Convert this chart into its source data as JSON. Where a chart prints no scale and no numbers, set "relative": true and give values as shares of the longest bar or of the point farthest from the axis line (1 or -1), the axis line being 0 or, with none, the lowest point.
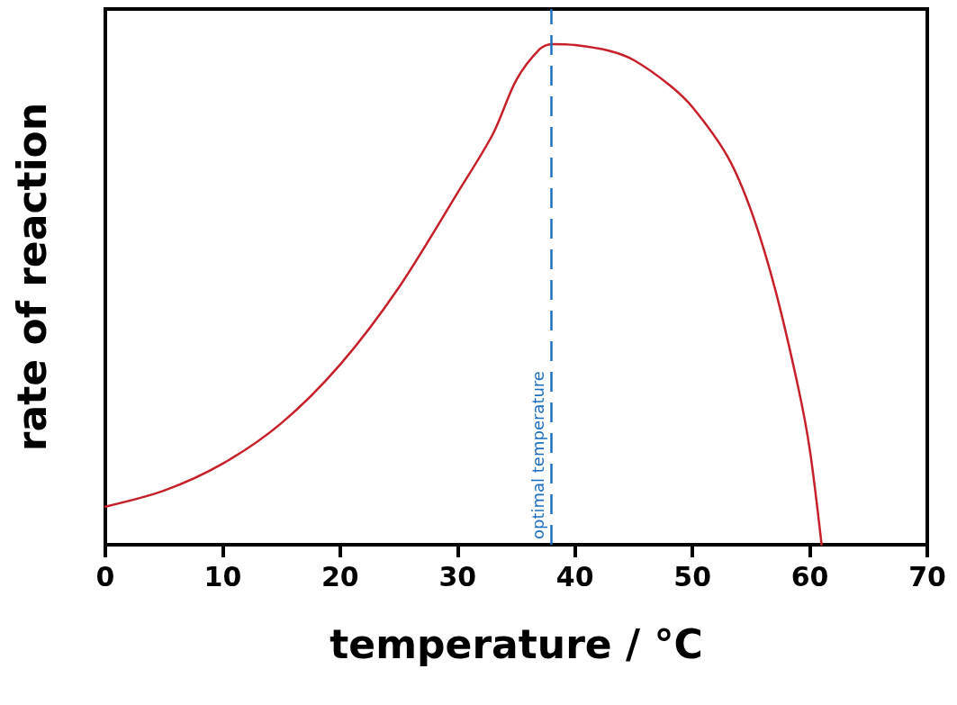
{
  "chart_data": {
    "type": "line",
    "xlabel": "temperature / °C",
    "ylabel": "rate of reaction",
    "x": [
      0,
      5,
      10,
      15,
      20,
      25,
      30,
      33,
      35,
      37,
      38,
      40,
      43,
      45,
      48,
      50,
      53,
      55,
      57,
      59,
      60,
      61
    ],
    "series": [
      {
        "color": "#c8202a",
        "values": [
          0.076,
          0.108,
          0.162,
          0.243,
          0.36,
          0.514,
          0.703,
          0.82,
          0.928,
          0.99,
          1,
          0.998,
          0.986,
          0.968,
          0.919,
          0.874,
          0.775,
          0.667,
          0.514,
          0.315,
          0.189,
          0
        ]
      }
    ],
    "relative": true,
    "xlim": [
      0,
      70
    ],
    "xticks": [
      0,
      10,
      20,
      30,
      40,
      50,
      60,
      70
    ],
    "ref_lines": [
      {
        "axis": "x",
        "value": 38,
        "label": "optimal temperature",
        "color": "#1f6fc0",
        "line_style": "dashed"
      }
    ],
    "grid": false,
    "marker": "none",
    "line_style": "solid"
  }
}
